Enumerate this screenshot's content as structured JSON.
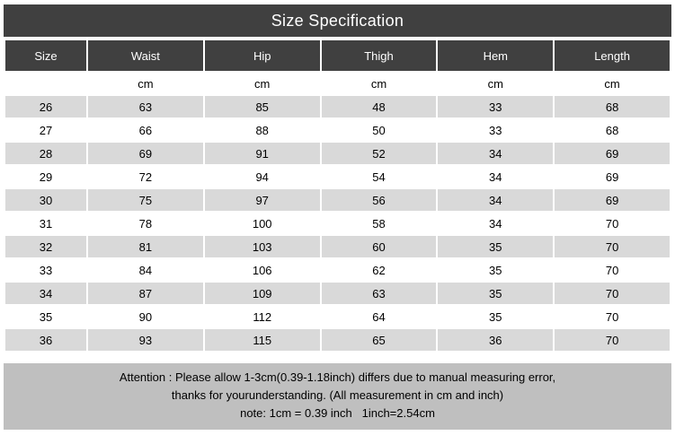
{
  "title": "Size Specification",
  "columns": [
    "Size",
    "Waist",
    "Hip",
    "Thigh",
    "Hem",
    "Length"
  ],
  "unit_row": [
    "",
    "cm",
    "cm",
    "cm",
    "cm",
    "cm"
  ],
  "rows": [
    [
      "26",
      "63",
      "85",
      "48",
      "33",
      "68"
    ],
    [
      "27",
      "66",
      "88",
      "50",
      "33",
      "68"
    ],
    [
      "28",
      "69",
      "91",
      "52",
      "34",
      "69"
    ],
    [
      "29",
      "72",
      "94",
      "54",
      "34",
      "69"
    ],
    [
      "30",
      "75",
      "97",
      "56",
      "34",
      "69"
    ],
    [
      "31",
      "78",
      "100",
      "58",
      "34",
      "70"
    ],
    [
      "32",
      "81",
      "103",
      "60",
      "35",
      "70"
    ],
    [
      "33",
      "84",
      "106",
      "62",
      "35",
      "70"
    ],
    [
      "34",
      "87",
      "109",
      "63",
      "35",
      "70"
    ],
    [
      "35",
      "90",
      "112",
      "64",
      "35",
      "70"
    ],
    [
      "36",
      "93",
      "115",
      "65",
      "36",
      "70"
    ]
  ],
  "footer": {
    "line1": "Attention : Please allow 1-3cm(0.39-1.18inch) differs due to manual measuring error,",
    "line2": "thanks for yourunderstanding. (All measurement in cm and inch)",
    "line3": "note: 1cm = 0.39 inch   1inch=2.54cm"
  },
  "colors": {
    "header_bg": "#404040",
    "header_text": "#ffffff",
    "row_bg": "#ffffff",
    "row_alt_bg": "#d9d9d9",
    "footer_bg": "#bfbfbf",
    "text": "#000000"
  }
}
